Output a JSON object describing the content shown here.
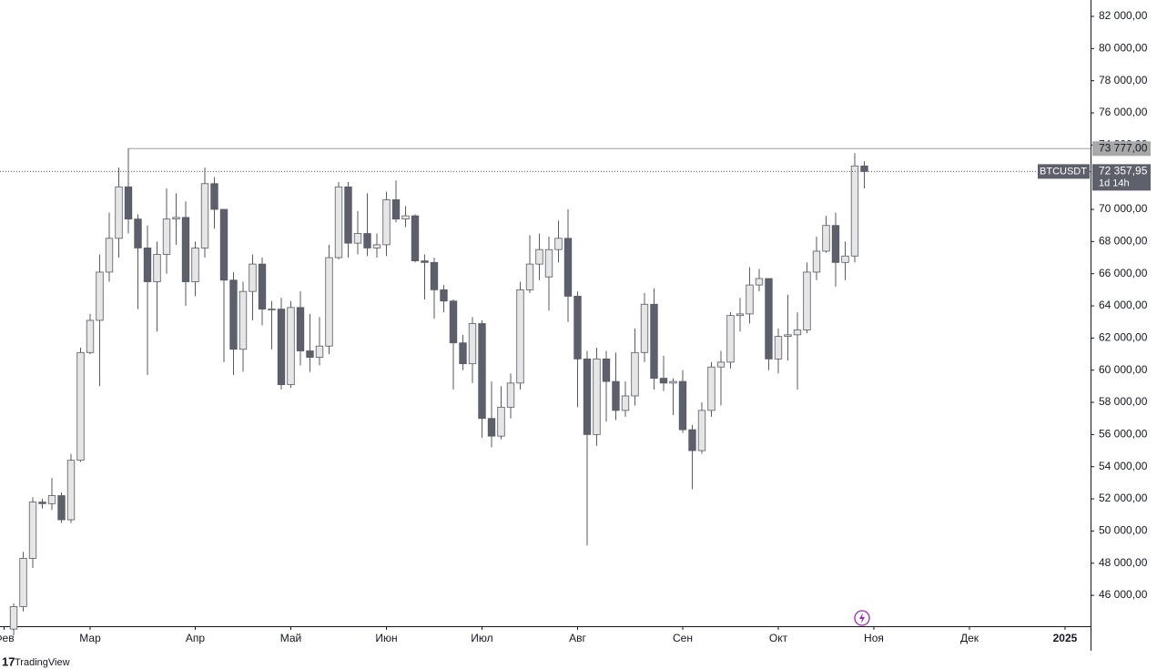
{
  "chart_data": {
    "type": "candlestick",
    "symbol": "BTCUSDT",
    "countdown": "1d 14h",
    "brand": "TradingView",
    "x": [
      0,
      1,
      2,
      3,
      4,
      5,
      6,
      7,
      8,
      9,
      10,
      11,
      12,
      13,
      14,
      15,
      16,
      17,
      18,
      19,
      20,
      21,
      22,
      23,
      24,
      25,
      26,
      27,
      28,
      29,
      30,
      31,
      32,
      33,
      34,
      35,
      36,
      37,
      38,
      39,
      40,
      41,
      42,
      43,
      44,
      45,
      46,
      47,
      48,
      49,
      50,
      51,
      52,
      53,
      54,
      55,
      56,
      57,
      58,
      59,
      60,
      61,
      62,
      63,
      64,
      65,
      66,
      67,
      68,
      69,
      70,
      71,
      72,
      73,
      74,
      75,
      76,
      77,
      78,
      79,
      80,
      81,
      82,
      83,
      84,
      85,
      86,
      87,
      88,
      89
    ],
    "open": [
      43900,
      45300,
      48300,
      51800,
      51700,
      52200,
      50700,
      54400,
      61100,
      63100,
      66100,
      68200,
      71400,
      69400,
      67600,
      65500,
      67200,
      69400,
      69500,
      65500,
      67600,
      71600,
      70000,
      65600,
      61300,
      64900,
      66600,
      63800,
      63800,
      59100,
      63900,
      61200,
      60800,
      61500,
      67000,
      71400,
      67900,
      68500,
      67600,
      67800,
      70600,
      69400,
      69600,
      66800,
      66700,
      65000,
      64300,
      61700,
      60400,
      62900,
      57000,
      55900,
      57700,
      59200,
      65000,
      66600,
      65800,
      67500,
      68200,
      64600,
      60700,
      56000,
      60700,
      59300,
      57500,
      58400,
      61100,
      64100,
      59500,
      59200,
      59300,
      56300,
      55000,
      57500,
      60200,
      60500,
      63400,
      63500,
      65300,
      65700,
      60700,
      62100,
      62200,
      62500,
      66100,
      67400,
      69000,
      66700,
      67100,
      72700
    ],
    "high": [
      45500,
      48700,
      52100,
      52000,
      53300,
      52400,
      54800,
      61400,
      63500,
      67200,
      69800,
      72600,
      73800,
      69700,
      69000,
      68000,
      71300,
      71000,
      70500,
      68000,
      72600,
      72000,
      70000,
      66100,
      65500,
      67200,
      67000,
      64300,
      64500,
      64300,
      64900,
      63500,
      63300,
      67800,
      71700,
      71700,
      69900,
      71000,
      68500,
      71100,
      71800,
      70200,
      69700,
      67200,
      67000,
      65300,
      64400,
      62200,
      63300,
      63100,
      59300,
      59000,
      59800,
      65500,
      68400,
      68500,
      68300,
      69300,
      70000,
      64900,
      61200,
      61400,
      61200,
      61100,
      59300,
      62600,
      64800,
      65100,
      60900,
      59500,
      60000,
      56600,
      58000,
      60500,
      61200,
      63600,
      64500,
      66400,
      66300,
      65700,
      62600,
      64700,
      63600,
      66700,
      68300,
      69600,
      69800,
      68000,
      73500,
      73000
    ],
    "low": [
      43500,
      45000,
      47700,
      51400,
      51300,
      50500,
      50500,
      54300,
      61000,
      59000,
      65500,
      67000,
      68500,
      63800,
      59700,
      62400,
      66000,
      67800,
      64000,
      64600,
      67000,
      68800,
      60500,
      59700,
      59900,
      63100,
      62800,
      61300,
      58800,
      58900,
      60300,
      59900,
      60300,
      61000,
      66900,
      67000,
      67200,
      67100,
      67000,
      67100,
      69200,
      68900,
      66700,
      64400,
      63200,
      63600,
      58800,
      60000,
      59200,
      55800,
      55200,
      55700,
      57000,
      58800,
      64800,
      65600,
      63700,
      66700,
      63000,
      57700,
      49100,
      55300,
      56800,
      56900,
      57100,
      57800,
      60500,
      58800,
      58700,
      57200,
      56100,
      52600,
      54800,
      57100,
      57800,
      60100,
      62400,
      62900,
      64900,
      60000,
      59800,
      60600,
      58800,
      62300,
      65600,
      67300,
      65200,
      65600,
      66700,
      71300
    ],
    "close": [
      45300,
      48300,
      51800,
      51700,
      52200,
      50700,
      54400,
      61100,
      63100,
      66100,
      68200,
      71400,
      69400,
      67600,
      65500,
      67200,
      69400,
      69500,
      65500,
      67600,
      71600,
      70000,
      65600,
      61300,
      64900,
      66600,
      63800,
      63800,
      59100,
      63900,
      61200,
      60800,
      61500,
      67000,
      71400,
      67900,
      68500,
      67600,
      67800,
      70600,
      69400,
      69600,
      66800,
      66700,
      65000,
      64300,
      61700,
      60400,
      62900,
      57000,
      55900,
      57700,
      59200,
      65000,
      66600,
      67500,
      67500,
      68200,
      64600,
      60700,
      56000,
      60700,
      59300,
      57500,
      58400,
      61100,
      64100,
      59500,
      59200,
      59300,
      56300,
      55000,
      57500,
      60200,
      60500,
      63400,
      63500,
      65300,
      65700,
      60700,
      62100,
      62200,
      62500,
      66100,
      67400,
      69000,
      66700,
      67100,
      72700,
      72357.95
    ],
    "last_label": "72 357,95",
    "up_color": "#e6e6e6",
    "down_color": "#5d606b",
    "border_color": "#555a66",
    "resistance": {
      "value": 73777,
      "label": "73 777,00"
    },
    "xlim": [
      -1.43,
      112.67
    ],
    "xticks": [
      {
        "value": -1,
        "label": "Фев"
      },
      {
        "value": 8,
        "label": "Мар"
      },
      {
        "value": 19,
        "label": "Апр"
      },
      {
        "value": 29,
        "label": "Май"
      },
      {
        "value": 39,
        "label": "Июн"
      },
      {
        "value": 49,
        "label": "Июл"
      },
      {
        "value": 59,
        "label": "Авг"
      },
      {
        "value": 70,
        "label": "Сен"
      },
      {
        "value": 80,
        "label": "Окт"
      },
      {
        "value": 90,
        "label": "Ноя"
      },
      {
        "value": 100,
        "label": "Дек"
      },
      {
        "value": 110,
        "label": "2025"
      }
    ],
    "ylim": [
      44080,
      83020
    ],
    "yticks": [
      {
        "value": 46000,
        "label": "46 000,00"
      },
      {
        "value": 48000,
        "label": "48 000,00"
      },
      {
        "value": 50000,
        "label": "50 000,00"
      },
      {
        "value": 52000,
        "label": "52 000,00"
      },
      {
        "value": 54000,
        "label": "54 000,00"
      },
      {
        "value": 56000,
        "label": "56 000,00"
      },
      {
        "value": 58000,
        "label": "58 000,00"
      },
      {
        "value": 60000,
        "label": "60 000,00"
      },
      {
        "value": 62000,
        "label": "62 000,00"
      },
      {
        "value": 64000,
        "label": "64 000,00"
      },
      {
        "value": 66000,
        "label": "66 000,00"
      },
      {
        "value": 68000,
        "label": "68 000,00"
      },
      {
        "value": 70000,
        "label": "70 000,00"
      },
      {
        "value": 74000,
        "label": "74 000,00"
      },
      {
        "value": 76000,
        "label": "76 000,00"
      },
      {
        "value": 78000,
        "label": "78 000,00"
      },
      {
        "value": 80000,
        "label": "80 000,00"
      },
      {
        "value": 82000,
        "label": "82 000,00"
      }
    ],
    "grid": false
  }
}
